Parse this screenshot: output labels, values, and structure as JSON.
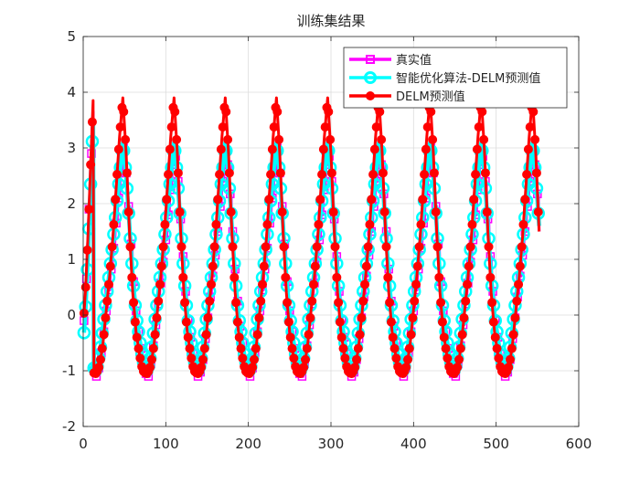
{
  "chart_data": {
    "type": "line",
    "title": "训练集结果",
    "xlabel": "",
    "ylabel": "",
    "xlim": [
      0,
      600
    ],
    "ylim": [
      -2,
      5
    ],
    "xticks": [
      0,
      100,
      200,
      300,
      400,
      500,
      600
    ],
    "yticks": [
      -2,
      -1,
      0,
      1,
      2,
      3,
      4,
      5
    ],
    "grid": true,
    "legend_position": "top-right",
    "n_points": 552,
    "period": 62,
    "series": [
      {
        "name": "真实值",
        "color": "#ff00ff",
        "marker": "square",
        "style": "staircase",
        "cycle_profile": {
          "x_offsets": [
            0,
            4,
            8,
            12,
            16,
            20,
            24,
            28,
            32,
            36,
            40,
            44,
            48,
            52,
            56,
            60,
            62
          ],
          "y_values": [
            -1.1,
            -0.8,
            -0.3,
            0.2,
            0.7,
            1.2,
            1.8,
            2.4,
            3.0,
            2.4,
            1.5,
            0.6,
            -0.1,
            -0.5,
            -0.9,
            -1.1,
            -1.1
          ]
        }
      },
      {
        "name": "智能优化算法-DELM预测值",
        "color": "#00ffff",
        "marker": "circle",
        "style": "smooth",
        "cycle_profile": {
          "x_offsets": [
            0,
            4,
            8,
            12,
            16,
            20,
            24,
            28,
            32,
            36,
            40,
            44,
            48,
            52,
            56,
            60,
            62
          ],
          "y_values": [
            -1.0,
            -0.7,
            -0.2,
            0.3,
            0.8,
            1.3,
            1.9,
            2.5,
            3.1,
            2.5,
            1.6,
            0.7,
            0.0,
            -0.4,
            -0.8,
            -1.0,
            -1.0
          ]
        }
      },
      {
        "name": "DELM预测值",
        "color": "#ff0000",
        "marker": "circle",
        "style": "smooth",
        "cycle_profile": {
          "x_offsets": [
            0,
            4,
            8,
            12,
            16,
            20,
            24,
            28,
            32,
            36,
            40,
            44,
            48,
            52,
            56,
            60,
            62
          ],
          "y_values": [
            -1.05,
            -0.9,
            -0.5,
            0.1,
            0.7,
            1.4,
            2.3,
            3.2,
            3.9,
            2.9,
            1.5,
            0.4,
            -0.3,
            -0.7,
            -1.0,
            -1.05,
            -1.05
          ]
        }
      }
    ],
    "start_segment": {
      "x": [
        0,
        3,
        6,
        9,
        12
      ],
      "y": [
        -0.2,
        0.5,
        1.5,
        2.7,
        3.85
      ]
    }
  }
}
